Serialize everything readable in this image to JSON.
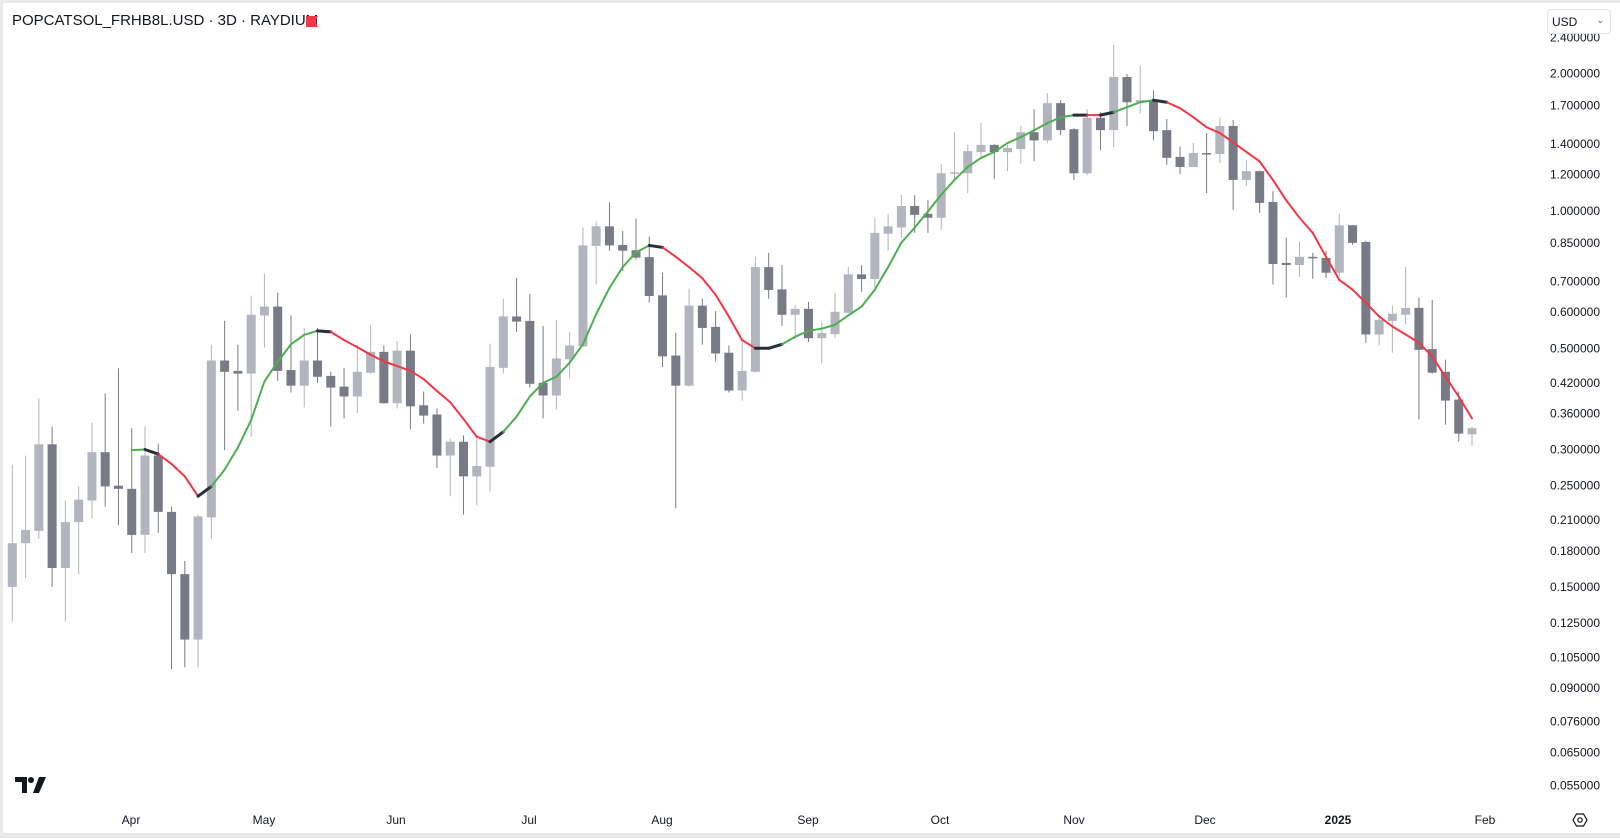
{
  "header": {
    "title": "POPCATSOL_FRHB8L.USD · 3D · RAYDIUM",
    "flag_color": "#f23645",
    "currency_select": "USD"
  },
  "colors": {
    "up": "#b2b5be",
    "down": "#787b86",
    "ma_up": "#4caf50",
    "ma_down": "#f23645",
    "ma_turn": "#2a2e39"
  },
  "chart_data": {
    "type": "candlestick",
    "title": "POPCATSOL_FRHB8L.USD · 3D · RAYDIUM",
    "interval": "3D",
    "y_scale": "log",
    "ylim": [
      0.053,
      2.45
    ],
    "y_ticks": [
      "2.400000",
      "2.000000",
      "1.700000",
      "1.400000",
      "1.200000",
      "1.000000",
      "0.850000",
      "0.700000",
      "0.600000",
      "0.500000",
      "0.420000",
      "0.360000",
      "0.300000",
      "0.250000",
      "0.210000",
      "0.180000",
      "0.150000",
      "0.125000",
      "0.105000",
      "0.090000",
      "0.076000",
      "0.065000",
      "0.055000"
    ],
    "x_ticks": [
      {
        "label": "Apr",
        "bold": false
      },
      {
        "label": "May",
        "bold": false
      },
      {
        "label": "Jun",
        "bold": false
      },
      {
        "label": "Jul",
        "bold": false
      },
      {
        "label": "Aug",
        "bold": false
      },
      {
        "label": "Sep",
        "bold": false
      },
      {
        "label": "Oct",
        "bold": false
      },
      {
        "label": "Nov",
        "bold": false
      },
      {
        "label": "Dec",
        "bold": false
      },
      {
        "label": "2025",
        "bold": true
      },
      {
        "label": "Feb",
        "bold": false
      }
    ],
    "ohlc_fields": [
      "open",
      "high",
      "low",
      "close"
    ],
    "candles": [
      [
        0.15,
        0.278,
        0.126,
        0.187
      ],
      [
        0.187,
        0.291,
        0.157,
        0.2
      ],
      [
        0.199,
        0.388,
        0.191,
        0.308
      ],
      [
        0.308,
        0.337,
        0.15,
        0.165
      ],
      [
        0.165,
        0.232,
        0.126,
        0.208
      ],
      [
        0.208,
        0.249,
        0.16,
        0.233
      ],
      [
        0.232,
        0.344,
        0.212,
        0.296
      ],
      [
        0.296,
        0.398,
        0.225,
        0.249
      ],
      [
        0.25,
        0.452,
        0.205,
        0.246
      ],
      [
        0.246,
        0.334,
        0.178,
        0.195
      ],
      [
        0.195,
        0.337,
        0.178,
        0.291
      ],
      [
        0.291,
        0.309,
        0.197,
        0.219
      ],
      [
        0.219,
        0.225,
        0.099,
        0.16
      ],
      [
        0.16,
        0.171,
        0.1,
        0.115
      ],
      [
        0.115,
        0.216,
        0.1,
        0.214
      ],
      [
        0.213,
        0.509,
        0.191,
        0.47
      ],
      [
        0.47,
        0.574,
        0.299,
        0.444
      ],
      [
        0.446,
        0.509,
        0.365,
        0.44
      ],
      [
        0.44,
        0.652,
        0.32,
        0.592
      ],
      [
        0.59,
        0.729,
        0.502,
        0.617
      ],
      [
        0.617,
        0.662,
        0.424,
        0.446
      ],
      [
        0.448,
        0.59,
        0.4,
        0.414
      ],
      [
        0.414,
        0.554,
        0.371,
        0.47
      ],
      [
        0.47,
        0.554,
        0.42,
        0.433
      ],
      [
        0.435,
        0.444,
        0.337,
        0.41
      ],
      [
        0.412,
        0.453,
        0.351,
        0.392
      ],
      [
        0.392,
        0.509,
        0.361,
        0.444
      ],
      [
        0.442,
        0.563,
        0.44,
        0.491
      ],
      [
        0.491,
        0.507,
        0.378,
        0.379
      ],
      [
        0.379,
        0.518,
        0.369,
        0.494
      ],
      [
        0.494,
        0.536,
        0.332,
        0.373
      ],
      [
        0.375,
        0.402,
        0.342,
        0.356
      ],
      [
        0.358,
        0.369,
        0.273,
        0.291
      ],
      [
        0.291,
        0.317,
        0.237,
        0.312
      ],
      [
        0.312,
        0.322,
        0.216,
        0.262
      ],
      [
        0.262,
        0.318,
        0.226,
        0.276
      ],
      [
        0.275,
        0.512,
        0.243,
        0.455
      ],
      [
        0.453,
        0.642,
        0.44,
        0.587
      ],
      [
        0.587,
        0.713,
        0.543,
        0.572
      ],
      [
        0.574,
        0.658,
        0.41,
        0.418
      ],
      [
        0.42,
        0.56,
        0.351,
        0.394
      ],
      [
        0.394,
        0.577,
        0.367,
        0.475
      ],
      [
        0.473,
        0.543,
        0.429,
        0.507
      ],
      [
        0.505,
        0.92,
        0.503,
        0.84
      ],
      [
        0.838,
        0.948,
        0.69,
        0.925
      ],
      [
        0.925,
        1.045,
        0.818,
        0.84
      ],
      [
        0.842,
        0.904,
        0.738,
        0.818
      ],
      [
        0.82,
        0.962,
        0.782,
        0.79
      ],
      [
        0.792,
        0.878,
        0.63,
        0.651
      ],
      [
        0.653,
        0.732,
        0.455,
        0.48
      ],
      [
        0.482,
        0.54,
        0.223,
        0.414
      ],
      [
        0.414,
        0.676,
        0.412,
        0.62
      ],
      [
        0.62,
        0.642,
        0.509,
        0.554
      ],
      [
        0.557,
        0.603,
        0.468,
        0.487
      ],
      [
        0.489,
        0.507,
        0.4,
        0.404
      ],
      [
        0.404,
        0.521,
        0.384,
        0.446
      ],
      [
        0.444,
        0.793,
        0.442,
        0.753
      ],
      [
        0.753,
        0.809,
        0.642,
        0.671
      ],
      [
        0.673,
        0.761,
        0.56,
        0.592
      ],
      [
        0.592,
        0.622,
        0.524,
        0.61
      ],
      [
        0.61,
        0.632,
        0.516,
        0.526
      ],
      [
        0.526,
        0.572,
        0.463,
        0.54
      ],
      [
        0.537,
        0.662,
        0.526,
        0.601
      ],
      [
        0.598,
        0.753,
        0.597,
        0.726
      ],
      [
        0.726,
        0.761,
        0.665,
        0.709
      ],
      [
        0.709,
        0.966,
        0.665,
        0.895
      ],
      [
        0.891,
        0.985,
        0.818,
        0.925
      ],
      [
        0.92,
        1.083,
        0.874,
        1.025
      ],
      [
        1.025,
        1.083,
        0.895,
        0.98
      ],
      [
        0.985,
        1.055,
        0.895,
        0.966
      ],
      [
        0.966,
        1.268,
        0.909,
        1.209
      ],
      [
        1.209,
        1.487,
        1.175,
        1.215
      ],
      [
        1.209,
        1.395,
        1.094,
        1.352
      ],
      [
        1.345,
        1.558,
        1.312,
        1.395
      ],
      [
        1.395,
        1.402,
        1.175,
        1.345
      ],
      [
        1.345,
        1.395,
        1.222,
        1.373
      ],
      [
        1.366,
        1.535,
        1.268,
        1.487
      ],
      [
        1.487,
        1.67,
        1.285,
        1.427
      ],
      [
        1.427,
        1.812,
        1.406,
        1.722
      ],
      [
        1.722,
        1.748,
        1.466,
        1.503
      ],
      [
        1.51,
        1.518,
        1.169,
        1.209
      ],
      [
        1.209,
        1.67,
        1.197,
        1.6
      ],
      [
        1.6,
        1.645,
        1.358,
        1.503
      ],
      [
        1.503,
        2.31,
        1.38,
        1.965
      ],
      [
        1.965,
        1.995,
        1.535,
        1.73
      ],
      [
        1.73,
        2.077,
        1.635,
        1.748
      ],
      [
        1.748,
        1.838,
        1.427,
        1.495
      ],
      [
        1.503,
        1.59,
        1.26,
        1.307
      ],
      [
        1.313,
        1.384,
        1.204,
        1.248
      ],
      [
        1.248,
        1.41,
        1.246,
        1.339
      ],
      [
        1.339,
        1.481,
        1.094,
        1.332
      ],
      [
        1.332,
        1.6,
        1.273,
        1.535
      ],
      [
        1.535,
        1.582,
        1.005,
        1.169
      ],
      [
        1.169,
        1.292,
        1.135,
        1.222
      ],
      [
        1.222,
        1.225,
        0.99,
        1.041
      ],
      [
        1.046,
        1.105,
        0.69,
        0.765
      ],
      [
        0.769,
        0.874,
        0.646,
        0.761
      ],
      [
        0.761,
        0.856,
        0.717,
        0.793
      ],
      [
        0.793,
        0.809,
        0.71,
        0.789
      ],
      [
        0.789,
        0.818,
        0.713,
        0.732
      ],
      [
        0.732,
        0.985,
        0.717,
        0.93
      ],
      [
        0.93,
        0.932,
        0.843,
        0.851
      ],
      [
        0.855,
        0.86,
        0.514,
        0.536
      ],
      [
        0.536,
        0.592,
        0.507,
        0.577
      ],
      [
        0.574,
        0.62,
        0.489,
        0.595
      ],
      [
        0.592,
        0.753,
        0.563,
        0.613
      ],
      [
        0.613,
        0.646,
        0.349,
        0.496
      ],
      [
        0.498,
        0.638,
        0.44,
        0.442
      ],
      [
        0.444,
        0.472,
        0.34,
        0.384
      ],
      [
        0.386,
        0.402,
        0.312,
        0.325
      ],
      [
        0.324,
        0.337,
        0.306,
        0.334
      ]
    ],
    "ma_start_index": 9,
    "ma": [
      0.299,
      0.3,
      0.293,
      0.279,
      0.262,
      0.237,
      0.249,
      0.271,
      0.303,
      0.348,
      0.423,
      0.467,
      0.51,
      0.535,
      0.546,
      0.543,
      0.521,
      0.503,
      0.484,
      0.468,
      0.457,
      0.446,
      0.428,
      0.403,
      0.381,
      0.35,
      0.32,
      0.312,
      0.328,
      0.354,
      0.392,
      0.42,
      0.433,
      0.465,
      0.51,
      0.594,
      0.678,
      0.753,
      0.811,
      0.84,
      0.832,
      0.793,
      0.753,
      0.712,
      0.655,
      0.587,
      0.521,
      0.5,
      0.5,
      0.51,
      0.53,
      0.546,
      0.552,
      0.563,
      0.59,
      0.617,
      0.672,
      0.753,
      0.852,
      0.919,
      0.997,
      1.085,
      1.169,
      1.248,
      1.306,
      1.346,
      1.408,
      1.451,
      1.502,
      1.557,
      1.604,
      1.621,
      1.621,
      1.621,
      1.645,
      1.687,
      1.73,
      1.748,
      1.73,
      1.679,
      1.604,
      1.525,
      1.481,
      1.413,
      1.346,
      1.283,
      1.169,
      1.055,
      0.966,
      0.895,
      0.793,
      0.706,
      0.672,
      0.629,
      0.587,
      0.558,
      0.536,
      0.514,
      0.48,
      0.433,
      0.392,
      0.351
    ]
  }
}
